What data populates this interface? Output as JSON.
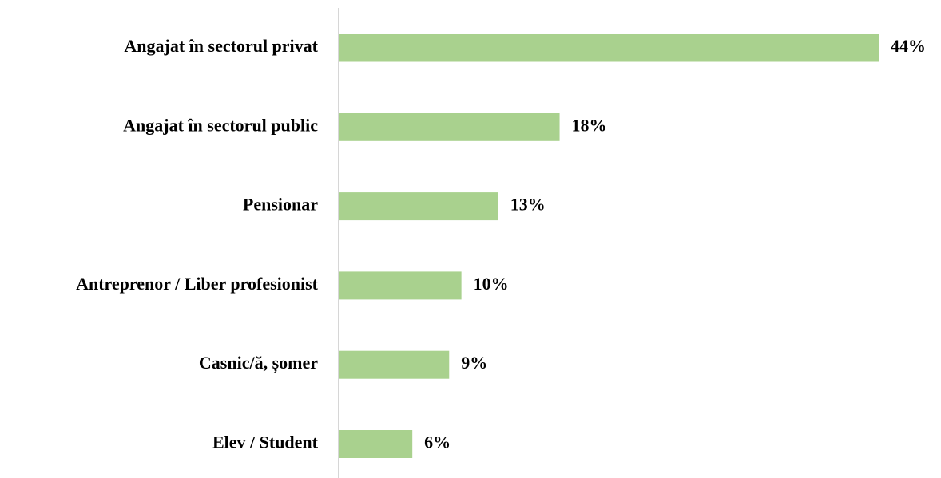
{
  "chart_data": {
    "type": "hbar",
    "categories": [
      "Angajat în sectorul privat",
      "Angajat în sectorul public",
      "Pensionar",
      "Antreprenor / Liber profesionist",
      "Casnic/ă, șomer",
      "Elev / Student"
    ],
    "values": [
      44,
      18,
      13,
      10,
      9,
      6
    ],
    "value_labels": [
      "44%",
      "18%",
      "13%",
      "10%",
      "9%",
      "6%"
    ],
    "color": "#a9d18e"
  }
}
